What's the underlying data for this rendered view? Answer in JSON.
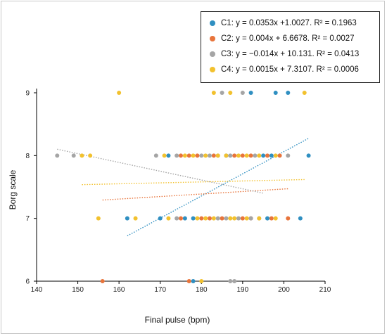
{
  "chart_data": {
    "type": "scatter",
    "xlabel": "Final pulse (bpm)",
    "ylabel": "Borg scale",
    "xlim": [
      140,
      210
    ],
    "ylim": [
      6,
      9
    ],
    "xticks": [
      140,
      150,
      160,
      170,
      180,
      190,
      200,
      210
    ],
    "yticks": [
      6,
      7,
      8,
      9
    ],
    "legend_position": "top-right",
    "grid": false,
    "series": [
      {
        "name": "C1",
        "legend_label": "C1: y = 0.0353x +1.0027. R² = 0.1963",
        "color": "#2f8fc1",
        "trend": {
          "slope": 0.0353,
          "intercept": 1.0027,
          "x_range": [
            162,
            206
          ]
        },
        "points": [
          [
            162,
            7
          ],
          [
            170,
            7
          ],
          [
            176,
            7
          ],
          [
            178,
            7
          ],
          [
            196,
            7
          ],
          [
            204,
            7
          ],
          [
            172,
            8
          ],
          [
            186,
            8
          ],
          [
            195,
            8
          ],
          [
            197,
            8
          ],
          [
            206,
            8
          ],
          [
            178,
            6
          ],
          [
            192,
            9
          ],
          [
            198,
            9
          ],
          [
            201,
            9
          ]
        ]
      },
      {
        "name": "C2",
        "legend_label": "C2: y = 0.004x + 6.6678. R² = 0.0027",
        "color": "#e8743b",
        "trend": {
          "slope": 0.004,
          "intercept": 6.6678,
          "x_range": [
            156,
            201
          ]
        },
        "points": [
          [
            156,
            6
          ],
          [
            177,
            6
          ],
          [
            175,
            7
          ],
          [
            180,
            7
          ],
          [
            182,
            7
          ],
          [
            185,
            7
          ],
          [
            190,
            7
          ],
          [
            192,
            7
          ],
          [
            197,
            7
          ],
          [
            201,
            7
          ],
          [
            175,
            8
          ],
          [
            177,
            8
          ],
          [
            179,
            8
          ],
          [
            183,
            8
          ],
          [
            188,
            8
          ],
          [
            190,
            8
          ],
          [
            192,
            8
          ],
          [
            196,
            8
          ],
          [
            199,
            8
          ]
        ]
      },
      {
        "name": "C3",
        "legend_label": "C3: y = −0.014x + 10.131. R² = 0.0413",
        "color": "#a5a5a5",
        "trend": {
          "slope": -0.014,
          "intercept": 10.131,
          "x_range": [
            145,
            195
          ]
        },
        "points": [
          [
            145,
            8
          ],
          [
            149,
            8
          ],
          [
            169,
            8
          ],
          [
            174,
            7
          ],
          [
            184,
            7
          ],
          [
            186,
            7
          ],
          [
            189,
            7
          ],
          [
            192,
            7
          ],
          [
            194,
            7
          ],
          [
            174,
            8
          ],
          [
            180,
            8
          ],
          [
            182,
            8
          ],
          [
            184,
            8
          ],
          [
            187,
            8
          ],
          [
            193,
            8
          ],
          [
            201,
            8
          ],
          [
            187,
            6
          ],
          [
            188,
            6
          ],
          [
            185,
            9
          ],
          [
            190,
            9
          ]
        ]
      },
      {
        "name": "C4",
        "legend_label": "C4: y = 0.0015x + 7.3107. R² = 0.0006",
        "color": "#f2c12e",
        "trend": {
          "slope": 0.0015,
          "intercept": 7.3107,
          "x_range": [
            151,
            205
          ]
        },
        "points": [
          [
            151,
            8
          ],
          [
            153,
            8
          ],
          [
            155,
            7
          ],
          [
            164,
            7
          ],
          [
            172,
            7
          ],
          [
            179,
            7
          ],
          [
            181,
            7
          ],
          [
            183,
            7
          ],
          [
            187,
            7
          ],
          [
            188,
            7
          ],
          [
            191,
            7
          ],
          [
            194,
            7
          ],
          [
            198,
            7
          ],
          [
            171,
            8
          ],
          [
            176,
            8
          ],
          [
            178,
            8
          ],
          [
            181,
            8
          ],
          [
            184,
            8
          ],
          [
            186,
            8
          ],
          [
            189,
            8
          ],
          [
            191,
            8
          ],
          [
            194,
            8
          ],
          [
            198,
            8
          ],
          [
            160,
            9
          ],
          [
            183,
            9
          ],
          [
            187,
            9
          ],
          [
            205,
            9
          ],
          [
            180,
            6
          ]
        ]
      }
    ]
  }
}
